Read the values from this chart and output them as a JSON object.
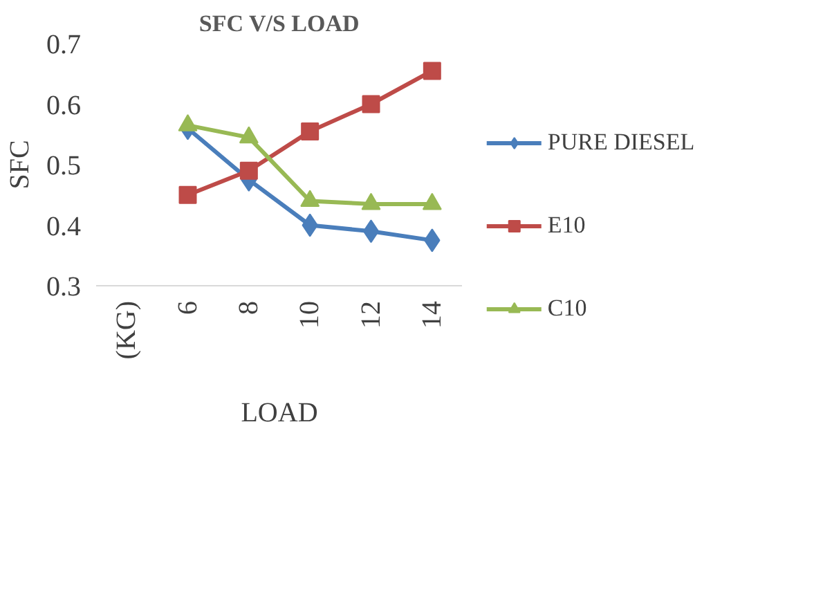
{
  "chart_data": {
    "type": "line",
    "title": "SFC V/S LOAD",
    "xlabel": "LOAD",
    "ylabel": "SFC",
    "categories": [
      "(KG)",
      "6",
      "8",
      "10",
      "12",
      "14"
    ],
    "series": [
      {
        "name": "PURE DIESEL",
        "color": "#4a7ebb",
        "marker": "diamond",
        "values": [
          null,
          0.56,
          0.475,
          0.4,
          0.39,
          0.375
        ]
      },
      {
        "name": "E10",
        "color": "#be4b48",
        "marker": "square",
        "values": [
          null,
          0.45,
          0.49,
          0.555,
          0.6,
          0.655
        ]
      },
      {
        "name": "C10",
        "color": "#98b954",
        "marker": "triangle",
        "values": [
          null,
          0.565,
          0.545,
          0.44,
          0.435,
          0.435
        ]
      }
    ],
    "ylim": [
      0.3,
      0.7
    ],
    "yticks": [
      0.3,
      0.4,
      0.5,
      0.6,
      0.7
    ],
    "grid": false,
    "legend": "right"
  }
}
